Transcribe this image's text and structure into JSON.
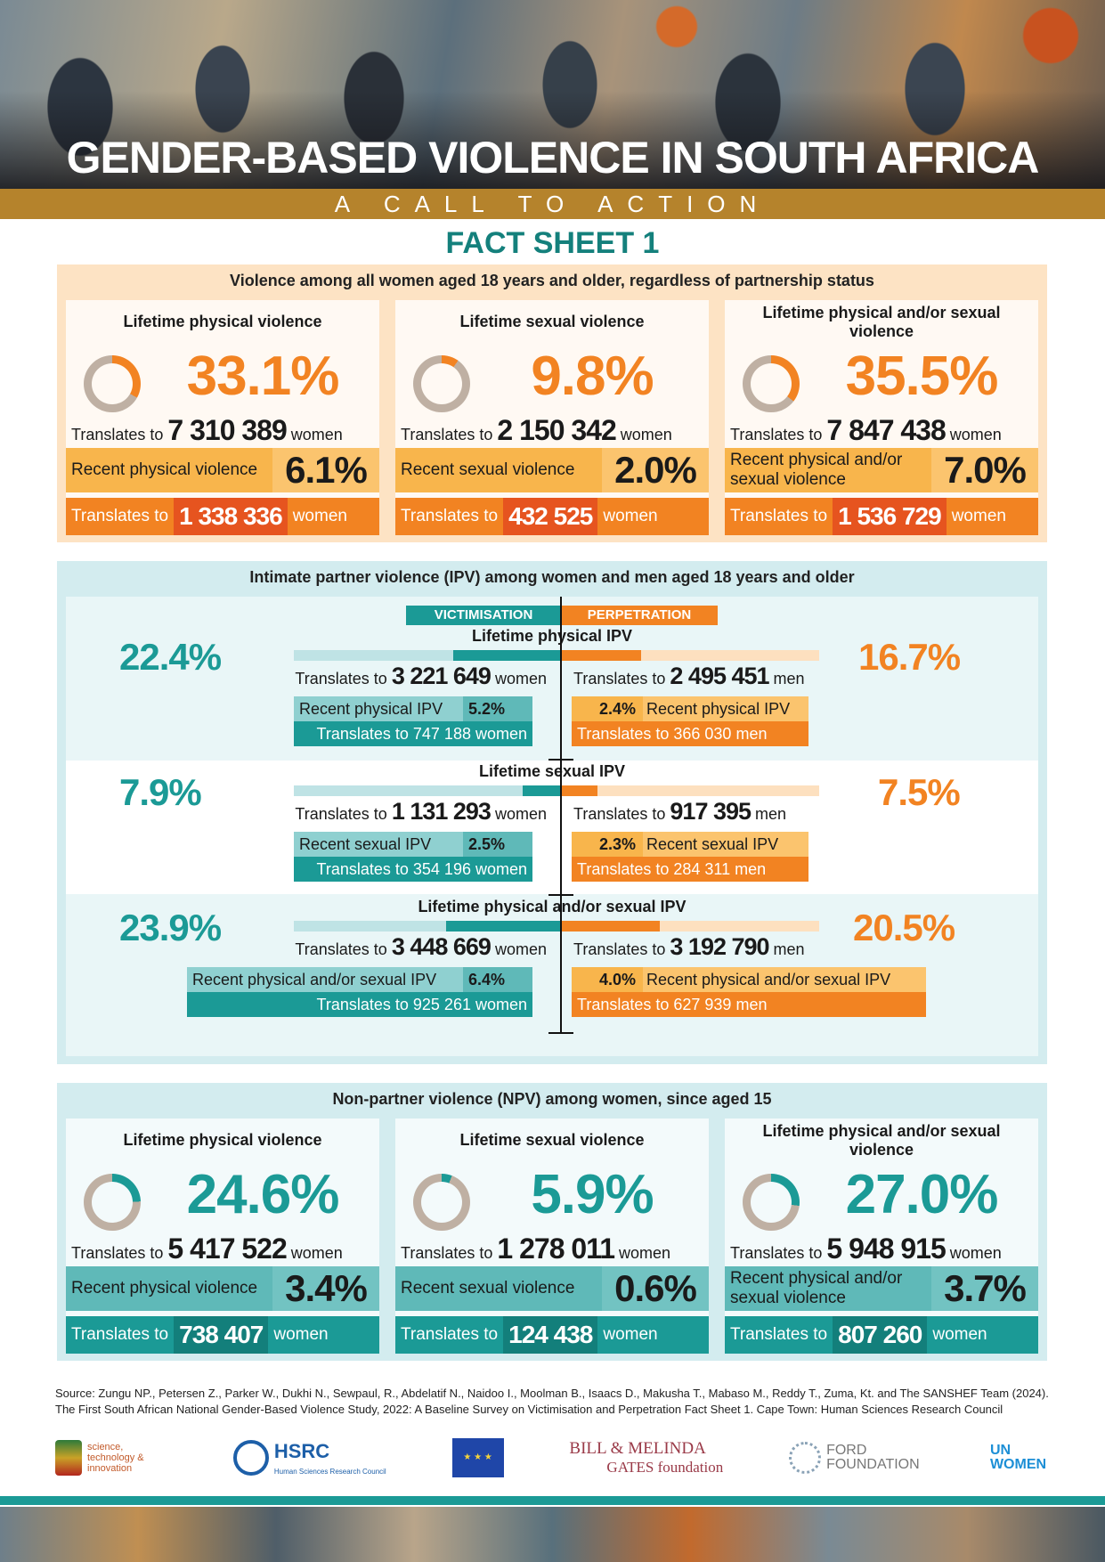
{
  "header": {
    "title": "GENDER-BASED VIOLENCE IN SOUTH AFRICA",
    "subtitle": "A CALL TO ACTION",
    "fact_sheet": "FACT SHEET 1"
  },
  "section1": {
    "title": "Violence among all women aged 18 years and older, regardless of partnership status",
    "cards": [
      {
        "title": "Lifetime physical violence",
        "pct": "33.1%",
        "pct_value": 33.1,
        "translates": "Translates to",
        "count": "7 310 389",
        "unit": "women",
        "recent_label": "Recent physical violence",
        "recent_pct": "6.1%",
        "recent_count": "1 338 336"
      },
      {
        "title": "Lifetime sexual violence",
        "pct": "9.8%",
        "pct_value": 9.8,
        "translates": "Translates to",
        "count": "2 150 342",
        "unit": "women",
        "recent_label": "Recent sexual violence",
        "recent_pct": "2.0%",
        "recent_count": "432 525"
      },
      {
        "title": "Lifetime physical and/or sexual violence",
        "pct": "35.5%",
        "pct_value": 35.5,
        "translates": "Translates to",
        "count": "7 847 438",
        "unit": "women",
        "recent_label": "Recent physical and/or sexual violence",
        "recent_pct": "7.0%",
        "recent_count": "1 536 729"
      }
    ]
  },
  "section2": {
    "title": "Intimate partner violence (IPV) among women and men aged 18 years and older",
    "victimisation": "VICTIMISATION",
    "perpetration": "PERPETRATION",
    "rows": [
      {
        "title": "Lifetime physical IPV",
        "v_pct": "22.4%",
        "v_value": 22.4,
        "v_count": "3 221 649",
        "v_unit": "women",
        "v_recent_label": "Recent physical IPV",
        "v_recent_pct": "5.2%",
        "v_recent_tr": "Translates to 747 188 women",
        "p_pct": "16.7%",
        "p_value": 16.7,
        "p_count": "2 495 451",
        "p_unit": "men",
        "p_recent_label": "Recent physical IPV",
        "p_recent_pct": "2.4%",
        "p_recent_tr": "Translates to 366 030 men"
      },
      {
        "title": "Lifetime sexual IPV",
        "v_pct": "7.9%",
        "v_value": 7.9,
        "v_count": "1 131 293",
        "v_unit": "women",
        "v_recent_label": "Recent sexual IPV",
        "v_recent_pct": "2.5%",
        "v_recent_tr": "Translates to 354 196 women",
        "p_pct": "7.5%",
        "p_value": 7.5,
        "p_count": "917 395",
        "p_unit": "men",
        "p_recent_label": "Recent sexual IPV",
        "p_recent_pct": "2.3%",
        "p_recent_tr": "Translates to 284 311 men"
      },
      {
        "title": "Lifetime physical and/or sexual IPV",
        "v_pct": "23.9%",
        "v_value": 23.9,
        "v_count": "3 448 669",
        "v_unit": "women",
        "v_recent_label": "Recent physical and/or sexual IPV",
        "v_recent_pct": "6.4%",
        "v_recent_tr": "Translates to 925 261 women",
        "p_pct": "20.5%",
        "p_value": 20.5,
        "p_count": "3 192 790",
        "p_unit": "men",
        "p_recent_label": "Recent physical and/or sexual IPV",
        "p_recent_pct": "4.0%",
        "p_recent_tr": "Translates to 627 939 men"
      }
    ],
    "translates": "Translates to"
  },
  "section3": {
    "title": "Non-partner violence  (NPV) among women, since aged 15",
    "cards": [
      {
        "title": "Lifetime physical violence",
        "pct": "24.6%",
        "pct_value": 24.6,
        "translates": "Translates to",
        "count": "5 417 522",
        "unit": "women",
        "recent_label": "Recent physical violence",
        "recent_pct": "3.4%",
        "recent_count": "738 407"
      },
      {
        "title": "Lifetime sexual violence",
        "pct": "5.9%",
        "pct_value": 5.9,
        "translates": "Translates to",
        "count": "1 278 011",
        "unit": "women",
        "recent_label": "Recent sexual violence",
        "recent_pct": "0.6%",
        "recent_count": "124 438"
      },
      {
        "title": "Lifetime physical and/or sexual violence",
        "pct": "27.0%",
        "pct_value": 27.0,
        "translates": "Translates to",
        "count": "5 948 915",
        "unit": "women",
        "recent_label": "Recent physical and/or sexual violence",
        "recent_pct": "3.7%",
        "recent_count": "807 260"
      }
    ]
  },
  "source": {
    "line1": "Source: Zungu NP., Petersen Z., Parker W., Dukhi N., Sewpaul, R., Abdelatif N., Naidoo I., Moolman B., Isaacs D., Makusha T., Mabaso M., Reddy T., Zuma, Kt. and The SANSHEF Team (2024).",
    "line2": "The First South African National Gender-Based Violence Study, 2022: A Baseline Survey on Victimisation and Perpetration Fact Sheet 1. Cape Town: Human Sciences Research Council"
  },
  "logos": {
    "dsti": "science, technology & innovation",
    "hsrc": "HSRC",
    "hsrc_sub": "Human Sciences Research Council",
    "gates1": "BILL & MELINDA",
    "gates2": "GATES foundation",
    "ford": "FORD FOUNDATION",
    "unwomen": "UN WOMEN"
  },
  "colors": {
    "orange": "#f28322",
    "teal": "#1b9a96",
    "gold": "#b5832c",
    "donut_gray": "#bfb0a3"
  }
}
